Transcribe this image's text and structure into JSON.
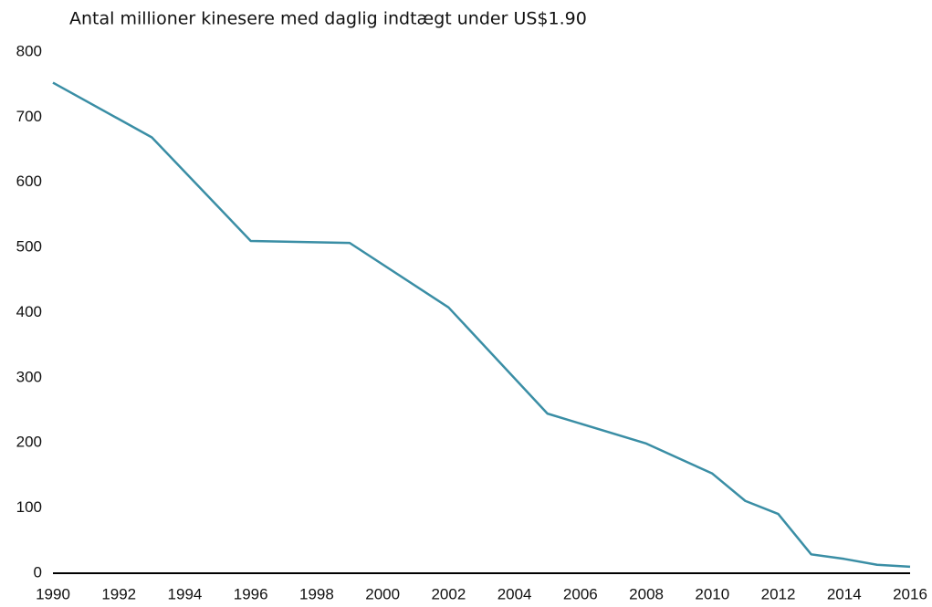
{
  "chart_data": {
    "type": "line",
    "title": "Antal millioner kinesere med daglig indtægt under US$1.90",
    "x": [
      1990,
      1993,
      1996,
      1999,
      2002,
      2005,
      2008,
      2010,
      2011,
      2012,
      2013,
      2014,
      2015,
      2016
    ],
    "series": [
      {
        "name": "Antal millioner",
        "color": "#3a8ea5",
        "values": [
          753,
          669,
          510,
          507,
          408,
          245,
          199,
          153,
          111,
          91,
          29,
          22,
          13,
          10
        ]
      }
    ],
    "xlim": [
      1990,
      2016
    ],
    "xticks": [
      1990,
      1992,
      1994,
      1996,
      1998,
      2000,
      2002,
      2004,
      2006,
      2008,
      2010,
      2012,
      2014,
      2016
    ],
    "ylim": [
      0,
      800
    ],
    "yticks": [
      0,
      100,
      200,
      300,
      400,
      500,
      600,
      700,
      800
    ],
    "grid": false
  }
}
